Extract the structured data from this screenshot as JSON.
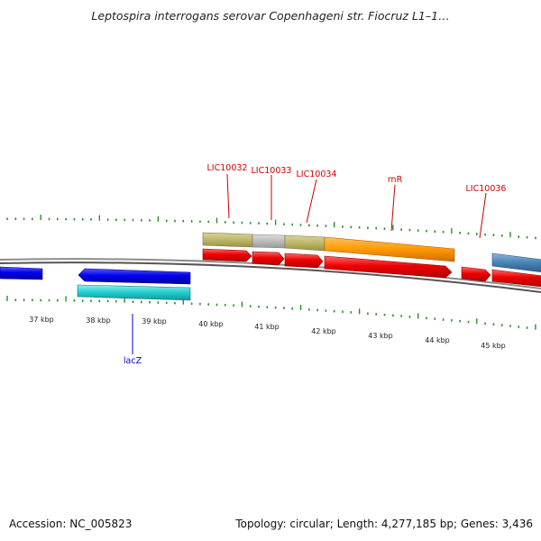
{
  "title": "Leptospira interrogans serovar Copenhageni str. Fiocruz L1–1…",
  "footer": {
    "accession": "Accession: NC_005823",
    "summary": "Topology: circular; Length: 4,277,185 bp; Genes: 3,436"
  },
  "colors": {
    "tick": "#2d8a2d",
    "backbone": "#8c8c8c",
    "gene_label_red": "#cc0000",
    "gene_label_blue": "#0000cc"
  },
  "scale_labels": [
    "37 kbp",
    "38 kbp",
    "39 kbp",
    "40 kbp",
    "41 kbp",
    "42 kbp",
    "43 kbp",
    "44 kbp",
    "45 kbp"
  ],
  "gene_labels": [
    "LIC10032",
    "LIC10033",
    "LIC10034",
    "rnR",
    "LIC10036",
    "lacZ"
  ]
}
